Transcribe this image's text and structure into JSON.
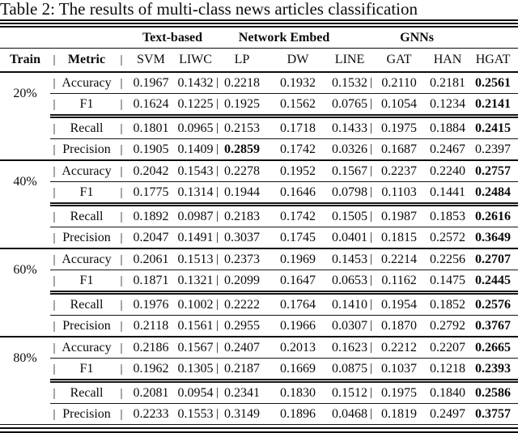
{
  "title": "Table 2: The results of multi-class news articles classification",
  "table": {
    "column_groups": [
      {
        "label": "Text-based",
        "span": 2
      },
      {
        "label": "Network Embed",
        "span": 3
      },
      {
        "label": "GNNs",
        "span": 3
      }
    ],
    "header": {
      "train": "Train",
      "metric": "Metric",
      "methods": [
        "SVM",
        "LIWC",
        "LP",
        "DW",
        "LINE",
        "GAT",
        "HAN",
        "HGAT"
      ]
    },
    "separator_glyph": "|",
    "blocks": [
      {
        "train": "20%",
        "rows": [
          {
            "metric": "Accuracy",
            "values": [
              "0.1967",
              "0.1432",
              "0.2218",
              "0.1932",
              "0.1532",
              "0.2110",
              "0.2181",
              "0.2561"
            ],
            "bold_indices": [
              7
            ]
          },
          {
            "metric": "F1",
            "values": [
              "0.1624",
              "0.1225",
              "0.1925",
              "0.1562",
              "0.0765",
              "0.1054",
              "0.1234",
              "0.2141"
            ],
            "bold_indices": [
              7
            ]
          },
          {
            "metric": "Recall",
            "values": [
              "0.1801",
              "0.0965",
              "0.2153",
              "0.1718",
              "0.1433",
              "0.1975",
              "0.1884",
              "0.2415"
            ],
            "bold_indices": [
              7
            ]
          },
          {
            "metric": "Precision",
            "values": [
              "0.1905",
              "0.1409",
              "0.2859",
              "0.1742",
              "0.0326",
              "0.1687",
              "0.2467",
              "0.2397"
            ],
            "bold_indices": [
              2
            ]
          }
        ]
      },
      {
        "train": "40%",
        "rows": [
          {
            "metric": "Accuracy",
            "values": [
              "0.2042",
              "0.1543",
              "0.2278",
              "0.1952",
              "0.1567",
              "0.2237",
              "0.2240",
              "0.2757"
            ],
            "bold_indices": [
              7
            ]
          },
          {
            "metric": "F1",
            "values": [
              "0.1775",
              "0.1314",
              "0.1944",
              "0.1646",
              "0.0798",
              "0.1103",
              "0.1441",
              "0.2484"
            ],
            "bold_indices": [
              7
            ]
          },
          {
            "metric": "Recall",
            "values": [
              "0.1892",
              "0.0987",
              "0.2183",
              "0.1742",
              "0.1505",
              "0.1987",
              "0.1853",
              "0.2616"
            ],
            "bold_indices": [
              7
            ]
          },
          {
            "metric": "Precision",
            "values": [
              "0.2047",
              "0.1491",
              "0.3037",
              "0.1745",
              "0.0401",
              "0.1815",
              "0.2572",
              "0.3649"
            ],
            "bold_indices": [
              7
            ]
          }
        ]
      },
      {
        "train": "60%",
        "rows": [
          {
            "metric": "Accuracy",
            "values": [
              "0.2061",
              "0.1513",
              "0.2373",
              "0.1969",
              "0.1453",
              "0.2214",
              "0.2256",
              "0.2707"
            ],
            "bold_indices": [
              7
            ]
          },
          {
            "metric": "F1",
            "values": [
              "0.1871",
              "0.1321",
              "0.2099",
              "0.1647",
              "0.0653",
              "0.1162",
              "0.1475",
              "0.2445"
            ],
            "bold_indices": [
              7
            ]
          },
          {
            "metric": "Recall",
            "values": [
              "0.1976",
              "0.1002",
              "0.2222",
              "0.1764",
              "0.1410",
              "0.1954",
              "0.1852",
              "0.2576"
            ],
            "bold_indices": [
              7
            ]
          },
          {
            "metric": "Precision",
            "values": [
              "0.2118",
              "0.1561",
              "0.2955",
              "0.1966",
              "0.0307",
              "0.1870",
              "0.2792",
              "0.3767"
            ],
            "bold_indices": [
              7
            ]
          }
        ]
      },
      {
        "train": "80%",
        "rows": [
          {
            "metric": "Accuracy",
            "values": [
              "0.2186",
              "0.1567",
              "0.2407",
              "0.2013",
              "0.1623",
              "0.2212",
              "0.2207",
              "0.2665"
            ],
            "bold_indices": [
              7
            ]
          },
          {
            "metric": "F1",
            "values": [
              "0.1962",
              "0.1305",
              "0.2187",
              "0.1669",
              "0.0875",
              "0.1037",
              "0.1218",
              "0.2393"
            ],
            "bold_indices": [
              7
            ]
          },
          {
            "metric": "Recall",
            "values": [
              "0.2081",
              "0.0954",
              "0.2341",
              "0.1830",
              "0.1512",
              "0.1975",
              "0.1840",
              "0.2586"
            ],
            "bold_indices": [
              7
            ]
          },
          {
            "metric": "Precision",
            "values": [
              "0.2233",
              "0.1553",
              "0.3149",
              "0.1896",
              "0.0468",
              "0.1819",
              "0.2497",
              "0.3757"
            ],
            "bold_indices": [
              7
            ]
          }
        ]
      }
    ]
  },
  "colors": {
    "text": "#0b0b0b",
    "rule": "#0b0b0b",
    "background": "#ffffff"
  }
}
